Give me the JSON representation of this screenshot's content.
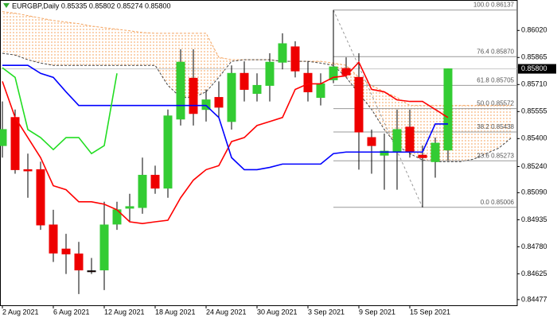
{
  "chart_data": {
    "type": "candlestick",
    "title": "EURGBP,Daily  0.85335 0.85802 0.85274 0.85800",
    "categories": [
      "2 Aug 2021",
      null,
      null,
      null,
      "6 Aug 2021",
      null,
      null,
      null,
      "12 Aug 2021",
      null,
      null,
      null,
      "18 Aug 2021",
      null,
      null,
      null,
      "24 Aug 2021",
      null,
      null,
      null,
      "30 Aug 2021",
      null,
      null,
      null,
      "3 Sep 2021",
      null,
      null,
      null,
      "9 Sep 2021",
      null,
      null,
      null,
      "15 Sep 2021",
      null,
      null,
      null,
      null,
      null,
      null,
      null,
      null
    ],
    "open": [
      0.8536,
      0.85521,
      0.85222,
      0.85222,
      0.84905,
      0.84767,
      0.84739,
      0.84642,
      0.84647,
      0.8491,
      0.85001,
      0.85005,
      0.8519,
      0.85116,
      0.85512,
      0.85746,
      0.85567,
      0.85636,
      0.85498,
      0.85774,
      0.85659,
      0.85705,
      0.85838,
      0.85926,
      0.85774,
      0.85636,
      0.85737,
      0.85802,
      0.85751,
      0.85406,
      0.85305,
      0.85323,
      0.85466,
      0.85305,
      0.85268,
      0.85335,
      null,
      null,
      null,
      null,
      null
    ],
    "high": [
      0.85613,
      0.85567,
      0.85314,
      0.85268,
      0.84992,
      0.84854,
      0.84808,
      0.84716,
      0.85038,
      0.85038,
      0.85084,
      0.85291,
      0.85245,
      0.85567,
      0.85912,
      0.85912,
      0.85682,
      0.85728,
      0.8582,
      0.85843,
      0.85774,
      0.85889,
      0.86004,
      0.85958,
      0.85843,
      0.85774,
      0.86137,
      0.85866,
      0.85889,
      0.85452,
      0.85429,
      0.85567,
      0.85567,
      0.8536,
      0.85406,
      0.85802,
      null,
      null,
      null,
      null,
      null
    ],
    "low": [
      0.85291,
      0.85199,
      0.85061,
      0.84877,
      0.84693,
      0.84624,
      0.84509,
      0.84624,
      0.84532,
      0.84877,
      0.84923,
      0.84969,
      0.85084,
      0.85061,
      0.85475,
      0.85475,
      0.85498,
      0.85521,
      0.85452,
      0.85613,
      0.85613,
      0.85613,
      0.85797,
      0.85751,
      0.85613,
      0.8559,
      0.85718,
      0.85751,
      0.85222,
      0.85199,
      0.85107,
      0.85107,
      0.85291,
      0.85006,
      0.85176,
      0.85274,
      null,
      null,
      null,
      null,
      null
    ],
    "close": [
      0.85452,
      0.85222,
      0.85215,
      0.84905,
      0.84744,
      0.84739,
      0.84647,
      0.84637,
      0.84905,
      0.84992,
      0.8501,
      0.8519,
      0.85116,
      0.8553,
      0.85838,
      0.85544,
      0.85622,
      0.8558,
      0.85774,
      0.85682,
      0.85705,
      0.85838,
      0.85944,
      0.85788,
      0.85668,
      0.85714,
      0.85811,
      0.85765,
      0.85438,
      0.8536,
      0.85328,
      0.85452,
      0.85323,
      0.85291,
      0.85374,
      0.858,
      null,
      null,
      null,
      null,
      null
    ],
    "up_color": "#33cc33",
    "down_color": "#ee0000",
    "indicators": [
      {
        "color": "#ff0000",
        "values": [
          0.85728,
          0.85521,
          0.85406,
          0.85291,
          0.8513,
          0.85107,
          0.85038,
          0.85038,
          0.85024,
          0.84992,
          0.84923,
          0.84913,
          0.84923,
          0.84932,
          0.85061,
          0.85162,
          0.85222,
          0.85245,
          0.85383,
          0.85406,
          0.85475,
          0.85498,
          0.85521,
          0.85682,
          0.85714,
          0.85714,
          0.85751,
          0.8576,
          0.85838,
          0.85682,
          0.85668,
          0.85622,
          0.85613,
          0.85613,
          0.85567,
          0.85521,
          null,
          null,
          null,
          null,
          null
        ]
      },
      {
        "color": "#0000ff",
        "values": [
          0.8582,
          0.8582,
          0.8582,
          0.85774,
          0.85751,
          0.85668,
          0.8559,
          0.8559,
          0.8559,
          0.8559,
          0.8559,
          0.8559,
          0.8559,
          0.8559,
          0.8559,
          0.8559,
          0.8559,
          0.85521,
          0.85291,
          0.85222,
          0.85222,
          0.85235,
          0.85254,
          0.85254,
          0.85254,
          0.85254,
          0.85314,
          0.85323,
          0.85323,
          0.85323,
          0.85323,
          0.85323,
          0.85323,
          0.85323,
          0.85484,
          0.85484,
          null,
          null,
          null,
          null,
          null
        ]
      },
      {
        "color": "#22dd22",
        "values": [
          0.85806,
          0.85751,
          0.85452,
          0.85406,
          0.85337,
          0.85406,
          0.85406,
          0.85314,
          0.8536,
          0.85774,
          null,
          null,
          null,
          null,
          null,
          null,
          null,
          null,
          null,
          null,
          null,
          null,
          null,
          null,
          null,
          null,
          null,
          null,
          null,
          null,
          null,
          null,
          null,
          null,
          null,
          null,
          null,
          null,
          null,
          null,
          null
        ]
      }
    ],
    "cloud": {
      "color": "#f4a460",
      "edge_color": "#444444",
      "span_a": [
        0.86128,
        0.86119,
        0.86105,
        0.86091,
        0.86077,
        0.86068,
        0.86059,
        0.86045,
        0.86036,
        0.86027,
        0.86018,
        0.86008,
        0.86004,
        0.86004,
        0.86004,
        0.86004,
        0.86004,
        0.85866,
        0.85852,
        0.85852,
        0.85852,
        0.85852,
        0.85843,
        0.85843,
        0.85843,
        0.85843,
        0.85833,
        0.8582,
        0.85751,
        0.85705,
        0.85668,
        0.85636,
        0.8559,
        0.8559,
        0.8559,
        0.8559,
        0.8559,
        0.8559,
        0.8559,
        0.8559,
        0.8559
      ],
      "span_b": [
        0.85889,
        0.85879,
        0.85852,
        0.85833,
        0.8582,
        0.8582,
        0.8582,
        0.8582,
        0.8582,
        0.8582,
        0.8582,
        0.8582,
        0.8582,
        0.85705,
        0.85636,
        0.85636,
        0.85668,
        0.85751,
        0.85843,
        0.85852,
        0.85852,
        0.85852,
        0.85843,
        0.85843,
        0.85843,
        0.85833,
        0.8582,
        0.85751,
        0.85659,
        0.85567,
        0.85452,
        0.8536,
        0.85314,
        0.85277,
        0.85268,
        0.85268,
        0.85268,
        0.85282,
        0.85314,
        0.85346,
        0.85406
      ]
    },
    "fibonacci": {
      "color": "#999999",
      "levels": [
        {
          "value": 0.86137,
          "label": "100.0 0.86137"
        },
        {
          "value": 0.8587,
          "label": "76.4 0.85870"
        },
        {
          "value": 0.85705,
          "label": "61.8 0.85705"
        },
        {
          "value": 0.85572,
          "label": "50.0 0.85572"
        },
        {
          "value": 0.85438,
          "label": "38.2 0.85438"
        },
        {
          "value": 0.85273,
          "label": "23.6 0.85273"
        },
        {
          "value": 0.85006,
          "label": "0.0 0.85006"
        }
      ]
    },
    "last_price": {
      "value": 0.858,
      "label": "0.85800"
    },
    "ylim": [
      0.8444,
      0.8619
    ],
    "yticks": [
      {
        "value": 0.8602,
        "label": "0.86020"
      },
      {
        "value": 0.85865,
        "label": "0.85865"
      },
      {
        "value": 0.8571,
        "label": "0.85710"
      },
      {
        "value": 0.85555,
        "label": "0.85555"
      },
      {
        "value": 0.854,
        "label": "0.85400"
      },
      {
        "value": 0.8524,
        "label": "0.85240"
      },
      {
        "value": 0.8509,
        "label": "0.85090"
      },
      {
        "value": 0.84935,
        "label": "0.84935"
      },
      {
        "value": 0.8478,
        "label": "0.84780"
      },
      {
        "value": 0.84625,
        "label": "0.84625"
      },
      {
        "value": 0.84477,
        "label": "0.84477"
      }
    ]
  }
}
